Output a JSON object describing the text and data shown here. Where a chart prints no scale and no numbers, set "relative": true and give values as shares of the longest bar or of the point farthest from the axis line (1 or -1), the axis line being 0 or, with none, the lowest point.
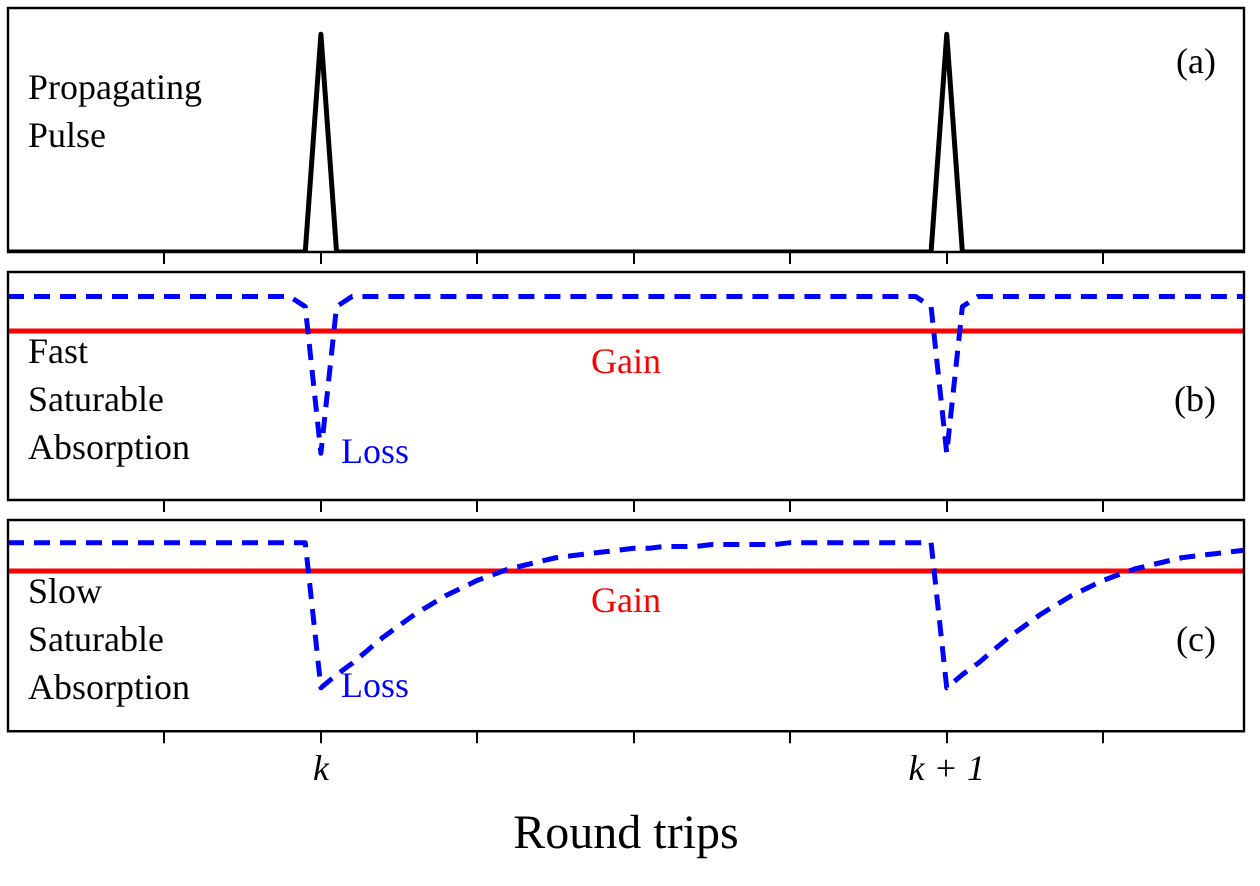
{
  "chart_data": [
    {
      "type": "line",
      "relative": true,
      "categories": [
        null,
        null,
        null,
        null,
        null,
        null,
        null,
        null,
        null,
        null,
        null,
        null,
        null,
        null,
        null,
        null,
        null,
        null,
        null,
        null,
        null,
        null,
        null,
        null,
        null,
        null,
        null,
        null,
        null,
        null,
        null,
        null,
        null,
        null,
        null,
        null,
        null,
        null,
        null,
        null,
        null,
        null,
        null,
        null,
        null,
        null,
        null,
        null,
        null,
        null,
        null,
        null,
        null,
        null,
        null,
        null,
        null,
        null,
        null,
        null,
        null,
        null,
        null,
        null,
        null,
        null,
        null,
        null,
        null,
        null,
        null,
        null,
        null,
        null,
        null,
        null,
        null,
        null,
        null,
        null
      ],
      "tick_labels": false,
      "marker": "none",
      "legend": false,
      "grid": false,
      "annotations": [
        "Propagating Pulse",
        "(a)"
      ],
      "series": [
        {
          "color": "#000000",
          "line_style": "solid",
          "values": [
            0,
            0,
            0,
            0,
            0,
            0,
            0,
            0,
            0,
            0,
            0,
            0,
            0,
            0,
            0,
            0,
            0,
            0,
            0,
            0,
            1,
            0,
            0,
            0,
            0,
            0,
            0,
            0,
            0,
            0,
            0,
            0,
            0,
            0,
            0,
            0,
            0,
            0,
            0,
            0,
            0,
            0,
            0,
            0,
            0,
            0,
            0,
            0,
            0,
            0,
            0,
            0,
            0,
            0,
            0,
            0,
            0,
            0,
            0,
            0,
            1,
            0,
            0,
            0,
            0,
            0,
            0,
            0,
            0,
            0,
            0,
            0,
            0,
            0,
            0,
            0,
            0,
            0,
            0,
            0
          ]
        }
      ]
    },
    {
      "type": "line",
      "relative": true,
      "categories": [
        null,
        null,
        null,
        null,
        null,
        null,
        null,
        null,
        null,
        null,
        null,
        null,
        null,
        null,
        null,
        null,
        null,
        null,
        null,
        null,
        null,
        null,
        null,
        null,
        null,
        null,
        null,
        null,
        null,
        null,
        null,
        null,
        null,
        null,
        null,
        null,
        null,
        null,
        null,
        null,
        null,
        null,
        null,
        null,
        null,
        null,
        null,
        null,
        null,
        null,
        null,
        null,
        null,
        null,
        null,
        null,
        null,
        null,
        null,
        null,
        null,
        null,
        null,
        null,
        null,
        null,
        null,
        null,
        null,
        null,
        null,
        null,
        null,
        null,
        null,
        null,
        null,
        null,
        null,
        null
      ],
      "tick_labels": false,
      "marker": "none",
      "legend": false,
      "grid": false,
      "annotations": [
        "Fast Saturable Absorption",
        "(b)"
      ],
      "series": [
        {
          "name": "Loss",
          "color": "#0000ff",
          "line_style": "dashed",
          "values": [
            1,
            1,
            1,
            1,
            1,
            1,
            1,
            1,
            1,
            1,
            1,
            1,
            1,
            1,
            1,
            1,
            1,
            1,
            1,
            0.95,
            0.23,
            0.95,
            1,
            1,
            1,
            1,
            1,
            1,
            1,
            1,
            1,
            1,
            1,
            1,
            1,
            1,
            1,
            1,
            1,
            1,
            1,
            1,
            1,
            1,
            1,
            1,
            1,
            1,
            1,
            1,
            1,
            1,
            1,
            1,
            1,
            1,
            1,
            1,
            1,
            0.95,
            0.23,
            0.95,
            1,
            1,
            1,
            1,
            1,
            1,
            1,
            1,
            1,
            1,
            1,
            1,
            1,
            1,
            1,
            1,
            1,
            1
          ]
        },
        {
          "name": "Gain",
          "color": "#ff0000",
          "line_style": "solid",
          "values": [
            0.83,
            0.83,
            0.83,
            0.83,
            0.83,
            0.83,
            0.83,
            0.83,
            0.83,
            0.83,
            0.83,
            0.83,
            0.83,
            0.83,
            0.83,
            0.83,
            0.83,
            0.83,
            0.83,
            0.83,
            0.83,
            0.83,
            0.83,
            0.83,
            0.83,
            0.83,
            0.83,
            0.83,
            0.83,
            0.83,
            0.83,
            0.83,
            0.83,
            0.83,
            0.83,
            0.83,
            0.83,
            0.83,
            0.83,
            0.83,
            0.83,
            0.83,
            0.83,
            0.83,
            0.83,
            0.83,
            0.83,
            0.83,
            0.83,
            0.83,
            0.83,
            0.83,
            0.83,
            0.83,
            0.83,
            0.83,
            0.83,
            0.83,
            0.83,
            0.83,
            0.83,
            0.83,
            0.83,
            0.83,
            0.83,
            0.83,
            0.83,
            0.83,
            0.83,
            0.83,
            0.83,
            0.83,
            0.83,
            0.83,
            0.83,
            0.83,
            0.83,
            0.83,
            0.83,
            0.83
          ]
        }
      ]
    },
    {
      "type": "line",
      "relative": true,
      "categories": [
        null,
        null,
        null,
        null,
        null,
        null,
        null,
        null,
        null,
        null,
        null,
        null,
        null,
        null,
        null,
        null,
        null,
        null,
        null,
        null,
        "k",
        null,
        null,
        null,
        null,
        null,
        null,
        null,
        null,
        null,
        null,
        null,
        null,
        null,
        null,
        null,
        null,
        null,
        null,
        null,
        null,
        null,
        null,
        null,
        null,
        null,
        null,
        null,
        null,
        null,
        null,
        null,
        null,
        null,
        null,
        null,
        null,
        null,
        null,
        null,
        "k + 1",
        null,
        null,
        null,
        null,
        null,
        null,
        null,
        null,
        null,
        null,
        null,
        null,
        null,
        null,
        null,
        null,
        null,
        null,
        null
      ],
      "xlabel": "Round trips",
      "marker": "none",
      "legend": false,
      "grid": false,
      "annotations": [
        "Slow Saturable Absorption",
        "(c)"
      ],
      "series": [
        {
          "name": "Loss",
          "color": "#0000ff",
          "line_style": "dashed",
          "values": [
            1,
            1,
            1,
            1,
            1,
            1,
            1,
            1,
            1,
            1,
            1,
            1,
            1,
            1,
            1,
            1,
            1,
            1,
            1,
            1,
            0.23,
            0.3,
            0.36,
            0.43,
            0.5,
            0.56,
            0.62,
            0.67,
            0.72,
            0.76,
            0.8,
            0.83,
            0.86,
            0.88,
            0.9,
            0.92,
            0.93,
            0.94,
            0.95,
            0.96,
            0.97,
            0.97,
            0.98,
            0.98,
            0.98,
            0.99,
            0.99,
            0.99,
            0.99,
            0.99,
            1,
            1,
            1,
            1,
            1,
            1,
            1,
            1,
            1,
            1,
            0.23,
            0.3,
            0.36,
            0.43,
            0.5,
            0.56,
            0.62,
            0.67,
            0.72,
            0.76,
            0.8,
            0.83,
            0.86,
            0.88,
            0.9,
            0.92,
            0.93,
            0.94,
            0.95,
            0.96
          ]
        },
        {
          "name": "Gain",
          "color": "#ff0000",
          "line_style": "solid",
          "values": [
            0.85,
            0.85,
            0.85,
            0.85,
            0.85,
            0.85,
            0.85,
            0.85,
            0.85,
            0.85,
            0.85,
            0.85,
            0.85,
            0.85,
            0.85,
            0.85,
            0.85,
            0.85,
            0.85,
            0.85,
            0.85,
            0.85,
            0.85,
            0.85,
            0.85,
            0.85,
            0.85,
            0.85,
            0.85,
            0.85,
            0.85,
            0.85,
            0.85,
            0.85,
            0.85,
            0.85,
            0.85,
            0.85,
            0.85,
            0.85,
            0.85,
            0.85,
            0.85,
            0.85,
            0.85,
            0.85,
            0.85,
            0.85,
            0.85,
            0.85,
            0.85,
            0.85,
            0.85,
            0.85,
            0.85,
            0.85,
            0.85,
            0.85,
            0.85,
            0.85,
            0.85,
            0.85,
            0.85,
            0.85,
            0.85,
            0.85,
            0.85,
            0.85,
            0.85,
            0.85,
            0.85,
            0.85,
            0.85,
            0.85,
            0.85,
            0.85,
            0.85,
            0.85,
            0.85,
            0.85
          ]
        }
      ]
    }
  ]
}
